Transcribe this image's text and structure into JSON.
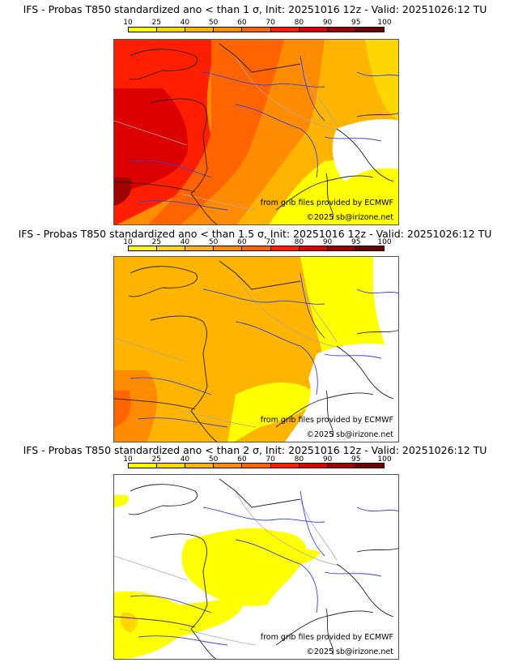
{
  "colorbar": {
    "ticks": [
      "10",
      "25",
      "40",
      "50",
      "60",
      "70",
      "80",
      "90",
      "95",
      "100"
    ],
    "colors": [
      "#ffff00",
      "#ffd700",
      "#ffb400",
      "#ff8c00",
      "#ff6400",
      "#ff1e00",
      "#dc0000",
      "#a00000",
      "#6e0000"
    ]
  },
  "credits": {
    "source": "from grib files provided by ECMWF",
    "copyright": "©2025 sb@irizone.net"
  },
  "panels": [
    {
      "title": "IFS - Probas T850  standardized ano < than 1 σ, Init: 20251016 12z - Valid: 20251026:12 TU",
      "level": 1
    },
    {
      "title": "IFS - Probas T850  standardized ano < than 1.5 σ, Init: 20251016 12z - Valid: 20251026:12 TU",
      "level": 2
    },
    {
      "title": "IFS - Probas T850  standardized ano < than 2 σ, Init: 20251016 12z - Valid: 20251026:12 TU",
      "level": 3
    }
  ]
}
